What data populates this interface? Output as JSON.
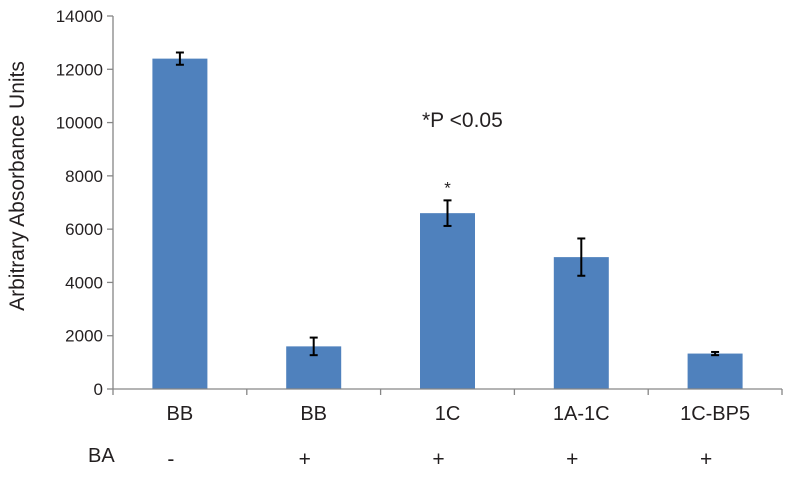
{
  "chart_data": {
    "type": "bar",
    "categories": [
      "BB",
      "BB",
      "1C",
      "1A-1C",
      "1C-BP5"
    ],
    "values": [
      12400,
      1600,
      6600,
      4950,
      1330
    ],
    "errors": [
      230,
      330,
      480,
      700,
      60
    ],
    "ylabel": "Arbitrary Absorbance Units",
    "ylim": [
      0,
      14000
    ],
    "yticks": [
      0,
      2000,
      4000,
      6000,
      8000,
      10000,
      12000,
      14000
    ],
    "bar_color": "#4f81bd",
    "annotation": "*P <0.05",
    "significance": [
      "",
      "",
      "*",
      "",
      ""
    ],
    "treatment_row": {
      "label": "BA",
      "values": [
        "-",
        "+",
        "+",
        "+",
        "+"
      ]
    },
    "grid": false,
    "legend": "none"
  }
}
